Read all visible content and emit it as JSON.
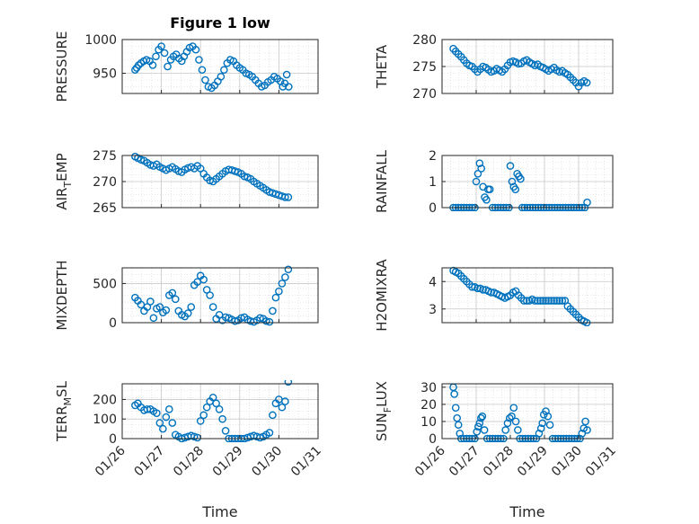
{
  "figure_title": "Figure 1 low",
  "colors": {
    "marker": "#0072BD",
    "axis": "#262626",
    "grid": "#d4d4d4"
  },
  "chart_data": [
    {
      "type": "scatter",
      "ylabel": "PRESSURE",
      "title": "Figure 1 low",
      "ylim": [
        920,
        1000
      ],
      "yticks": [
        950,
        1000
      ],
      "xlim": [
        0,
        5
      ],
      "xlabel": "",
      "grid": true,
      "x": [
        0.33,
        0.37,
        0.42,
        0.48,
        0.55,
        0.62,
        0.7,
        0.78,
        0.86,
        0.93,
        1.0,
        1.08,
        1.16,
        1.24,
        1.31,
        1.38,
        1.45,
        1.52,
        1.58,
        1.65,
        1.72,
        1.8,
        1.88,
        1.96,
        2.04,
        2.12,
        2.2,
        2.28,
        2.36,
        2.44,
        2.52,
        2.6,
        2.68,
        2.76,
        2.84,
        2.92,
        3.0,
        3.08,
        3.16,
        3.24,
        3.32,
        3.4,
        3.48,
        3.56,
        3.64,
        3.72,
        3.8,
        3.88,
        3.96,
        4.04,
        4.1,
        4.15,
        4.2,
        4.25
      ],
      "y": [
        955,
        958,
        962,
        965,
        968,
        970,
        968,
        962,
        975,
        985,
        990,
        980,
        960,
        970,
        975,
        978,
        972,
        968,
        975,
        982,
        988,
        990,
        985,
        970,
        955,
        940,
        930,
        928,
        932,
        938,
        945,
        955,
        965,
        970,
        968,
        962,
        958,
        955,
        950,
        948,
        945,
        940,
        935,
        930,
        932,
        937,
        940,
        945,
        942,
        938,
        930,
        935,
        948,
        930
      ]
    },
    {
      "type": "scatter",
      "ylabel": "THETA",
      "ylim": [
        270,
        280
      ],
      "yticks": [
        270,
        275,
        280
      ],
      "xlim": [
        0,
        5
      ],
      "xlabel": "",
      "grid": true,
      "x": [
        0.33,
        0.4,
        0.48,
        0.56,
        0.64,
        0.72,
        0.8,
        0.88,
        0.96,
        1.04,
        1.12,
        1.2,
        1.28,
        1.36,
        1.44,
        1.52,
        1.6,
        1.68,
        1.76,
        1.84,
        1.92,
        2.0,
        2.08,
        2.16,
        2.24,
        2.32,
        2.4,
        2.48,
        2.56,
        2.64,
        2.72,
        2.8,
        2.88,
        2.96,
        3.04,
        3.12,
        3.2,
        3.28,
        3.36,
        3.44,
        3.52,
        3.6,
        3.68,
        3.76,
        3.84,
        3.92,
        4.0,
        4.08,
        4.16,
        4.24
      ],
      "y": [
        278.3,
        277.8,
        277.3,
        276.8,
        276.2,
        275.6,
        275.2,
        275.0,
        274.5,
        274.0,
        274.5,
        275.0,
        274.8,
        274.4,
        274.0,
        274.2,
        274.6,
        274.3,
        274.0,
        274.5,
        275.2,
        275.8,
        276.0,
        275.8,
        275.5,
        275.6,
        276.0,
        276.2,
        275.8,
        275.5,
        275.2,
        275.4,
        275.0,
        274.8,
        274.5,
        274.2,
        274.5,
        274.8,
        274.3,
        274.0,
        274.2,
        273.8,
        273.5,
        273.0,
        272.5,
        272.0,
        271.3,
        272.0,
        272.3,
        272.0
      ]
    },
    {
      "type": "scatter",
      "ylabel": "AIR_TEMP",
      "ylim": [
        265,
        275
      ],
      "yticks": [
        265,
        270,
        275
      ],
      "xlim": [
        0,
        5
      ],
      "xlabel": "",
      "grid": true,
      "x": [
        0.33,
        0.4,
        0.48,
        0.56,
        0.64,
        0.72,
        0.8,
        0.88,
        0.96,
        1.04,
        1.12,
        1.2,
        1.28,
        1.36,
        1.44,
        1.52,
        1.6,
        1.68,
        1.76,
        1.84,
        1.92,
        2.0,
        2.08,
        2.16,
        2.24,
        2.32,
        2.4,
        2.48,
        2.56,
        2.64,
        2.72,
        2.8,
        2.88,
        2.96,
        3.04,
        3.12,
        3.2,
        3.28,
        3.36,
        3.44,
        3.52,
        3.6,
        3.68,
        3.76,
        3.84,
        3.92,
        4.0,
        4.08,
        4.16,
        4.24
      ],
      "y": [
        274.8,
        274.5,
        274.2,
        274.0,
        273.6,
        273.2,
        273.0,
        273.3,
        272.8,
        272.5,
        272.2,
        272.5,
        272.8,
        272.4,
        272.0,
        271.8,
        272.3,
        272.6,
        272.8,
        272.5,
        273.0,
        272.5,
        271.5,
        270.8,
        270.2,
        270.0,
        270.5,
        271.0,
        271.5,
        272.0,
        272.3,
        272.2,
        272.0,
        271.8,
        271.5,
        271.0,
        270.8,
        270.5,
        270.0,
        269.6,
        269.2,
        268.8,
        268.4,
        268.0,
        267.8,
        267.6,
        267.4,
        267.2,
        267.0,
        267.0
      ]
    },
    {
      "type": "scatter",
      "ylabel": "RAINFALL",
      "ylim": [
        0,
        2
      ],
      "yticks": [
        0,
        1,
        2
      ],
      "xlim": [
        0,
        5
      ],
      "xlabel": "",
      "grid": true,
      "x": [
        0.33,
        0.4,
        0.48,
        0.56,
        0.64,
        0.72,
        0.8,
        0.88,
        0.96,
        1.0,
        1.05,
        1.1,
        1.15,
        1.2,
        1.25,
        1.3,
        1.35,
        1.4,
        1.48,
        1.56,
        1.64,
        1.72,
        1.8,
        1.88,
        1.96,
        2.0,
        2.05,
        2.1,
        2.15,
        2.2,
        2.25,
        2.3,
        2.35,
        2.42,
        2.5,
        2.58,
        2.66,
        2.74,
        2.82,
        2.9,
        2.98,
        3.06,
        3.14,
        3.22,
        3.3,
        3.38,
        3.46,
        3.54,
        3.62,
        3.7,
        3.78,
        3.86,
        3.94,
        4.02,
        4.1,
        4.18,
        4.25
      ],
      "y": [
        0,
        0,
        0,
        0,
        0,
        0,
        0,
        0,
        0,
        1.0,
        1.3,
        1.7,
        1.5,
        0.8,
        0.4,
        0.3,
        0.7,
        0.7,
        0,
        0,
        0,
        0,
        0,
        0,
        0,
        1.6,
        1.0,
        0.8,
        0.7,
        1.3,
        1.2,
        1.1,
        0,
        0,
        0,
        0,
        0,
        0,
        0,
        0,
        0,
        0,
        0,
        0,
        0,
        0,
        0,
        0,
        0,
        0,
        0,
        0,
        0,
        0,
        0,
        0,
        0.2
      ]
    },
    {
      "type": "scatter",
      "ylabel": "MIXDEPTH",
      "ylim": [
        0,
        700
      ],
      "yticks": [
        0,
        500
      ],
      "xlim": [
        0,
        5
      ],
      "xlabel": "",
      "grid": true,
      "x": [
        0.33,
        0.4,
        0.48,
        0.56,
        0.64,
        0.72,
        0.8,
        0.88,
        0.96,
        1.04,
        1.12,
        1.2,
        1.28,
        1.36,
        1.44,
        1.52,
        1.6,
        1.68,
        1.76,
        1.84,
        1.92,
        2.0,
        2.08,
        2.16,
        2.24,
        2.32,
        2.4,
        2.48,
        2.56,
        2.64,
        2.72,
        2.8,
        2.88,
        2.96,
        3.04,
        3.12,
        3.2,
        3.28,
        3.36,
        3.44,
        3.52,
        3.6,
        3.68,
        3.76,
        3.84,
        3.92,
        4.0,
        4.08,
        4.16,
        4.24
      ],
      "y": [
        320,
        280,
        230,
        150,
        200,
        270,
        60,
        180,
        200,
        130,
        160,
        350,
        380,
        300,
        150,
        100,
        80,
        120,
        200,
        480,
        520,
        600,
        550,
        420,
        350,
        200,
        50,
        100,
        30,
        70,
        60,
        40,
        20,
        30,
        60,
        70,
        40,
        20,
        10,
        30,
        60,
        50,
        20,
        10,
        150,
        320,
        400,
        500,
        580,
        680
      ]
    },
    {
      "type": "scatter",
      "ylabel": "H2OMIXRA",
      "ylim": [
        2.5,
        4.5
      ],
      "yticks": [
        3,
        4
      ],
      "xlim": [
        0,
        5
      ],
      "xlabel": "",
      "grid": true,
      "x": [
        0.33,
        0.4,
        0.48,
        0.56,
        0.64,
        0.72,
        0.8,
        0.88,
        0.96,
        1.04,
        1.12,
        1.2,
        1.28,
        1.36,
        1.44,
        1.52,
        1.6,
        1.68,
        1.76,
        1.84,
        1.92,
        2.0,
        2.08,
        2.16,
        2.24,
        2.32,
        2.4,
        2.48,
        2.56,
        2.64,
        2.72,
        2.8,
        2.88,
        2.96,
        3.04,
        3.12,
        3.2,
        3.28,
        3.36,
        3.44,
        3.52,
        3.6,
        3.68,
        3.76,
        3.84,
        3.92,
        4.0,
        4.08,
        4.16,
        4.24
      ],
      "y": [
        4.4,
        4.35,
        4.3,
        4.2,
        4.1,
        4.0,
        3.9,
        3.8,
        3.8,
        3.75,
        3.75,
        3.7,
        3.7,
        3.65,
        3.6,
        3.6,
        3.55,
        3.5,
        3.45,
        3.4,
        3.45,
        3.5,
        3.6,
        3.65,
        3.5,
        3.4,
        3.3,
        3.3,
        3.3,
        3.35,
        3.3,
        3.3,
        3.3,
        3.3,
        3.3,
        3.3,
        3.3,
        3.3,
        3.3,
        3.3,
        3.3,
        3.3,
        3.1,
        3.0,
        2.9,
        2.8,
        2.7,
        2.6,
        2.55,
        2.5
      ]
    },
    {
      "type": "scatter",
      "ylabel": "TERR_MSL",
      "ylim": [
        0,
        280
      ],
      "yticks": [
        0,
        100,
        200
      ],
      "xlim": [
        0,
        5
      ],
      "xlabel": "Time",
      "grid": true,
      "xticks": [
        "01/26",
        "01/27",
        "01/28",
        "01/29",
        "01/30",
        "01/31"
      ],
      "x": [
        0.33,
        0.4,
        0.48,
        0.56,
        0.64,
        0.72,
        0.8,
        0.88,
        0.96,
        1.04,
        1.12,
        1.2,
        1.28,
        1.36,
        1.44,
        1.52,
        1.6,
        1.68,
        1.76,
        1.84,
        1.92,
        2.0,
        2.08,
        2.16,
        2.24,
        2.32,
        2.4,
        2.48,
        2.56,
        2.64,
        2.72,
        2.8,
        2.88,
        2.96,
        3.04,
        3.12,
        3.2,
        3.28,
        3.36,
        3.44,
        3.52,
        3.6,
        3.68,
        3.76,
        3.84,
        3.92,
        4.0,
        4.08,
        4.16,
        4.24
      ],
      "y": [
        170,
        180,
        160,
        145,
        150,
        150,
        140,
        130,
        80,
        50,
        110,
        150,
        80,
        20,
        10,
        0,
        5,
        10,
        15,
        10,
        5,
        90,
        120,
        160,
        190,
        210,
        180,
        150,
        100,
        40,
        0,
        0,
        0,
        0,
        0,
        0,
        5,
        10,
        15,
        10,
        5,
        10,
        20,
        30,
        120,
        180,
        200,
        160,
        190,
        290
      ]
    },
    {
      "type": "scatter",
      "ylabel": "SUN_FLUX",
      "ylim": [
        0,
        32
      ],
      "yticks": [
        0,
        10,
        20,
        30
      ],
      "xlim": [
        0,
        5
      ],
      "xlabel": "Time",
      "grid": true,
      "xticks": [
        "01/26",
        "01/27",
        "01/28",
        "01/29",
        "01/30",
        "01/31"
      ],
      "x": [
        0.33,
        0.36,
        0.4,
        0.44,
        0.48,
        0.52,
        0.56,
        0.64,
        0.72,
        0.8,
        0.88,
        0.96,
        1.02,
        1.06,
        1.1,
        1.14,
        1.18,
        1.24,
        1.32,
        1.4,
        1.48,
        1.56,
        1.64,
        1.72,
        1.8,
        1.86,
        1.92,
        1.98,
        2.04,
        2.1,
        2.16,
        2.22,
        2.28,
        2.36,
        2.44,
        2.52,
        2.6,
        2.68,
        2.76,
        2.84,
        2.9,
        2.94,
        2.98,
        3.04,
        3.1,
        3.16,
        3.24,
        3.32,
        3.4,
        3.48,
        3.56,
        3.64,
        3.72,
        3.8,
        3.88,
        3.96,
        4.04,
        4.1,
        4.15,
        4.2,
        4.25
      ],
      "y": [
        30,
        26,
        18,
        12,
        8,
        3,
        0,
        0,
        0,
        0,
        0,
        0,
        4,
        7,
        9,
        12,
        13,
        5,
        0,
        0,
        0,
        0,
        0,
        0,
        0,
        5,
        9,
        12,
        13,
        18,
        10,
        5,
        0,
        0,
        0,
        0,
        0,
        0,
        0,
        3,
        6,
        9,
        14,
        16,
        13,
        8,
        0,
        0,
        0,
        0,
        0,
        0,
        0,
        0,
        0,
        0,
        0,
        3,
        6,
        10,
        5
      ]
    }
  ]
}
